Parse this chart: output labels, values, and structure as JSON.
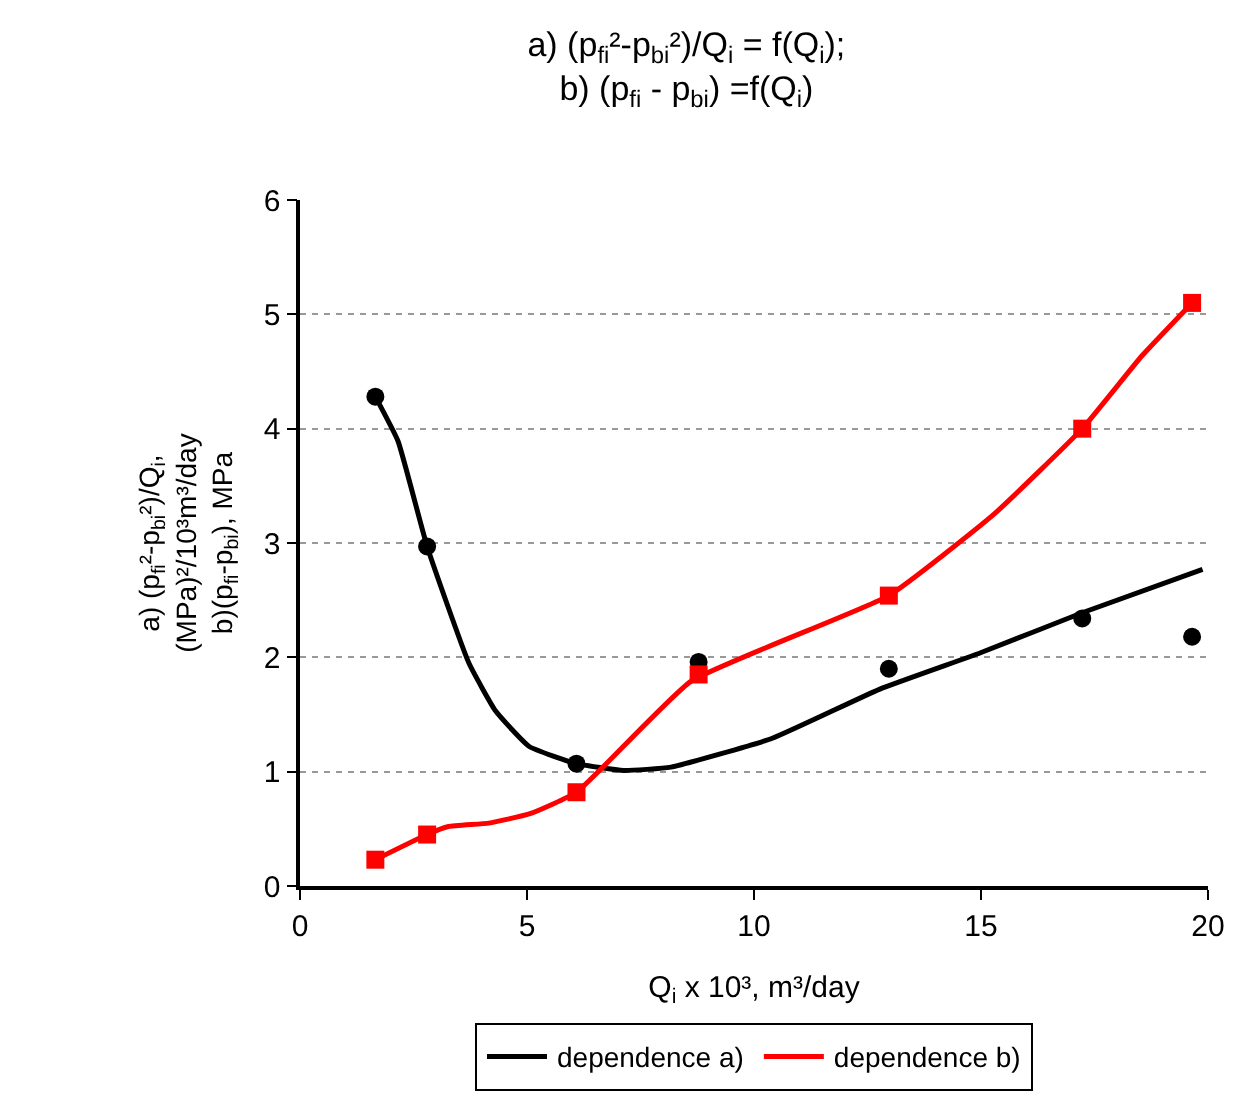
{
  "chart_data": {
    "type": "scatter",
    "title": "a) (p$_{fi}$²-p$_{bi}$²)/Q$_{i}$ = f(Q$_{i}$);\nb) (p$_{fi}$ - p$_{bi}$) =f(Q$_{i}$)",
    "xlabel": "Q$_{i}$ x 10³, m³/day",
    "ylabel": "a) (p$_{fi}$²-p$_{bi}$²)/Q$_{i}$,\n(MPa)²/10³m³/day\nb)(p$_{fi}$-p$_{bi}$), MPa",
    "xlim": [
      0,
      20
    ],
    "xticks": [
      0,
      5,
      10,
      15,
      20
    ],
    "ylim": [
      0,
      6
    ],
    "yticks": [
      0,
      1,
      2,
      3,
      4,
      5,
      6
    ],
    "grid": "y",
    "legend": "bottom",
    "series": [
      {
        "type": "scatter",
        "marker": "circle",
        "color": "#000000",
        "x": [
          1.66,
          2.8,
          6.09,
          8.78,
          12.97,
          17.23,
          19.65
        ],
        "values": [
          4.28,
          2.97,
          1.07,
          1.96,
          1.9,
          2.34,
          2.18
        ]
      },
      {
        "type": "scatter",
        "marker": "square",
        "color": "#ff0000",
        "x": [
          1.66,
          2.8,
          6.09,
          8.78,
          12.97,
          17.23,
          19.65
        ],
        "values": [
          0.23,
          0.45,
          0.82,
          1.85,
          2.54,
          4.0,
          5.1
        ]
      },
      {
        "type": "line",
        "marker": "none",
        "name": "dependence a)",
        "color": "#000000",
        "x": [
          1.66,
          2.16,
          2.8,
          3.72,
          4.31,
          5.05,
          6.09,
          7.13,
          8.17,
          10.39,
          12.76,
          14.99,
          17.23,
          19.88
        ],
        "values": [
          4.28,
          3.89,
          2.97,
          1.95,
          1.53,
          1.22,
          1.07,
          1.01,
          1.04,
          1.29,
          1.72,
          2.04,
          2.39,
          2.77
        ]
      },
      {
        "type": "line",
        "marker": "none",
        "name": "dependence b)",
        "color": "#ff0000",
        "x": [
          1.66,
          2.8,
          3.27,
          4.16,
          5.05,
          6.09,
          8.61,
          12.97,
          15.28,
          17.23,
          18.55,
          19.65
        ],
        "values": [
          0.23,
          0.45,
          0.52,
          0.55,
          0.63,
          0.82,
          1.79,
          2.54,
          3.25,
          4.0,
          4.64,
          5.1
        ]
      }
    ]
  }
}
